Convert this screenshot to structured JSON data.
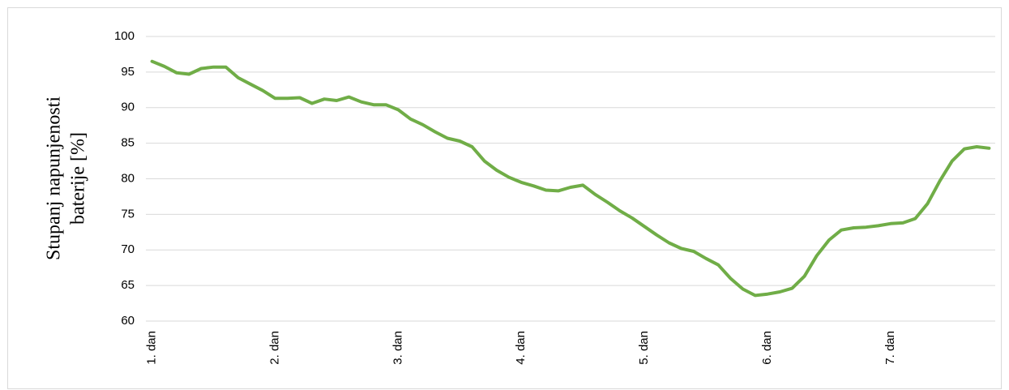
{
  "chart_data": {
    "type": "line",
    "y_label": [
      "Stupanj napunjenosti",
      "baterije [%]"
    ],
    "categories": [
      "1. dan",
      null,
      null,
      null,
      null,
      null,
      null,
      null,
      null,
      null,
      "2. dan",
      null,
      null,
      null,
      null,
      null,
      null,
      null,
      null,
      null,
      "3. dan",
      null,
      null,
      null,
      null,
      null,
      null,
      null,
      null,
      null,
      "4. dan",
      null,
      null,
      null,
      null,
      null,
      null,
      null,
      null,
      null,
      "5. dan",
      null,
      null,
      null,
      null,
      null,
      null,
      null,
      null,
      null,
      "6. dan",
      null,
      null,
      null,
      null,
      null,
      null,
      null,
      null,
      null,
      "7. dan",
      null,
      null,
      null,
      null,
      null,
      null,
      null,
      null
    ],
    "series": [
      {
        "color": "#70ad47",
        "values": [
          96.5,
          95.8,
          94.9,
          94.7,
          95.5,
          95.7,
          95.7,
          94.2,
          93.3,
          92.4,
          91.3,
          91.3,
          91.4,
          90.6,
          91.2,
          91.0,
          91.5,
          90.8,
          90.4,
          90.4,
          89.7,
          88.4,
          87.6,
          86.6,
          85.7,
          85.3,
          84.5,
          82.5,
          81.2,
          80.2,
          79.5,
          79.0,
          78.4,
          78.3,
          78.8,
          79.1,
          77.8,
          76.7,
          75.5,
          74.5,
          73.3,
          72.1,
          71.0,
          70.2,
          69.8,
          68.8,
          67.9,
          66.0,
          64.5,
          63.6,
          63.8,
          64.1,
          64.6,
          66.3,
          69.2,
          71.4,
          72.8,
          73.1,
          73.2,
          73.4,
          73.7,
          73.8,
          74.4,
          76.5,
          79.7,
          82.5,
          84.2,
          84.5,
          84.3
        ]
      }
    ],
    "ylim": [
      60,
      100
    ],
    "yticks": [
      60,
      65,
      70,
      75,
      80,
      85,
      90,
      95,
      100
    ],
    "grid": true
  }
}
